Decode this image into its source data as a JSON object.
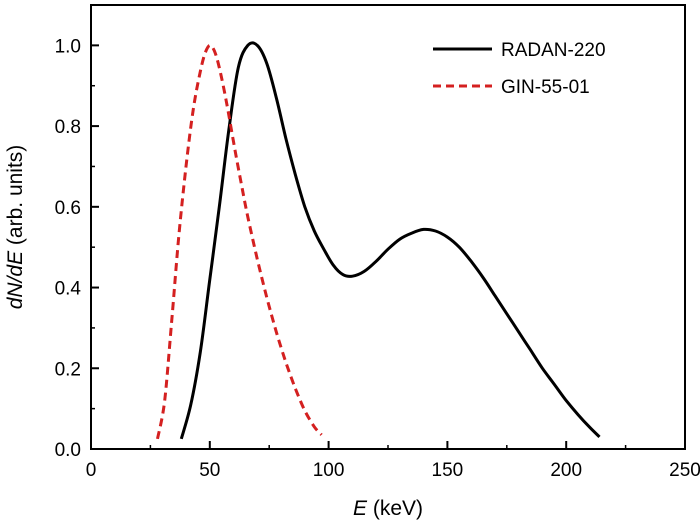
{
  "chart_data": {
    "type": "line",
    "xlabel": {
      "italic": "E",
      "rest": " (keV)"
    },
    "ylabel": {
      "italic": "dN/dE",
      "rest": " (arb. units)"
    },
    "xlim": [
      0,
      250
    ],
    "ylim": [
      0,
      1.1
    ],
    "xticks": [
      "0",
      "50",
      "100",
      "150",
      "200",
      "250"
    ],
    "yticks": [
      "0.0",
      "0.2",
      "0.4",
      "0.6",
      "0.8",
      "1.0"
    ],
    "xtick_values": [
      0,
      50,
      100,
      150,
      200,
      250
    ],
    "ytick_values": [
      0.0,
      0.2,
      0.4,
      0.6,
      0.8,
      1.0
    ],
    "grid": false,
    "legend_position": "top-right",
    "series": [
      {
        "name": "RADAN-220",
        "color": "#000000",
        "style": "solid",
        "points": [
          [
            38,
            0.025
          ],
          [
            42,
            0.11
          ],
          [
            46,
            0.24
          ],
          [
            50,
            0.42
          ],
          [
            54,
            0.6
          ],
          [
            58,
            0.79
          ],
          [
            62,
            0.945
          ],
          [
            66,
            1.0
          ],
          [
            70,
            1.0
          ],
          [
            74,
            0.955
          ],
          [
            78,
            0.87
          ],
          [
            82,
            0.77
          ],
          [
            86,
            0.68
          ],
          [
            90,
            0.6
          ],
          [
            94,
            0.54
          ],
          [
            98,
            0.495
          ],
          [
            102,
            0.455
          ],
          [
            106,
            0.432
          ],
          [
            110,
            0.428
          ],
          [
            115,
            0.44
          ],
          [
            120,
            0.465
          ],
          [
            125,
            0.495
          ],
          [
            130,
            0.52
          ],
          [
            135,
            0.535
          ],
          [
            140,
            0.544
          ],
          [
            145,
            0.54
          ],
          [
            150,
            0.525
          ],
          [
            155,
            0.5
          ],
          [
            160,
            0.465
          ],
          [
            165,
            0.425
          ],
          [
            170,
            0.38
          ],
          [
            175,
            0.335
          ],
          [
            180,
            0.29
          ],
          [
            185,
            0.245
          ],
          [
            190,
            0.2
          ],
          [
            195,
            0.16
          ],
          [
            200,
            0.12
          ],
          [
            205,
            0.085
          ],
          [
            210,
            0.053
          ],
          [
            214,
            0.03
          ]
        ]
      },
      {
        "name": "GIN-55-01",
        "color": "#d42020",
        "style": "dashed",
        "points": [
          [
            28,
            0.025
          ],
          [
            31,
            0.12
          ],
          [
            34,
            0.32
          ],
          [
            37,
            0.53
          ],
          [
            40,
            0.7
          ],
          [
            43,
            0.84
          ],
          [
            46,
            0.935
          ],
          [
            48,
            0.98
          ],
          [
            50,
            1.0
          ],
          [
            52,
            0.985
          ],
          [
            54,
            0.945
          ],
          [
            57,
            0.86
          ],
          [
            60,
            0.76
          ],
          [
            63,
            0.665
          ],
          [
            66,
            0.575
          ],
          [
            70,
            0.47
          ],
          [
            74,
            0.375
          ],
          [
            78,
            0.29
          ],
          [
            82,
            0.215
          ],
          [
            86,
            0.15
          ],
          [
            90,
            0.095
          ],
          [
            94,
            0.055
          ],
          [
            97,
            0.035
          ]
        ]
      }
    ]
  }
}
